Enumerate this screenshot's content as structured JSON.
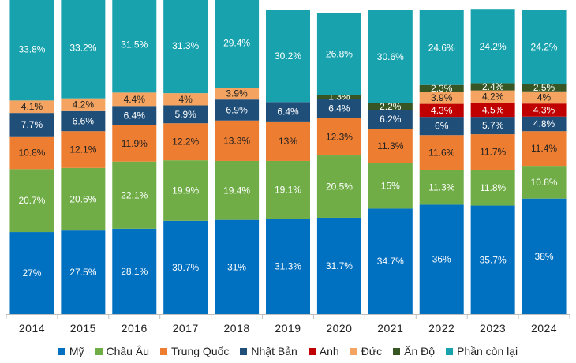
{
  "chart_data": {
    "type": "bar",
    "stacked": true,
    "title": "",
    "xlabel": "",
    "ylabel": "",
    "ylim": [
      0,
      100
    ],
    "grid": false,
    "legend_position": "bottom",
    "categories": [
      "2014",
      "2015",
      "2016",
      "2017",
      "2018",
      "2019",
      "2020",
      "2021",
      "2022",
      "2023",
      "2024"
    ],
    "series": [
      {
        "name": "Mỹ",
        "color": "#0070C0",
        "values": [
          27,
          27.5,
          28.1,
          30.7,
          31,
          31.3,
          31.7,
          34.7,
          36,
          35.7,
          38
        ],
        "labels": [
          "27%",
          "27.5%",
          "28.1%",
          "30.7%",
          "31%",
          "31.3%",
          "31.7%",
          "34.7%",
          "36%",
          "35.7%",
          "38%"
        ]
      },
      {
        "name": "Châu Âu",
        "color": "#70AD47",
        "values": [
          20.7,
          20.6,
          22.1,
          19.9,
          19.4,
          19.1,
          20.5,
          15,
          11.3,
          11.8,
          10.8
        ],
        "labels": [
          "20.7%",
          "20.6%",
          "22.1%",
          "19.9%",
          "19.4%",
          "19.1%",
          "20.5%",
          "15%",
          "11.3%",
          "11.8%",
          "10.8%"
        ]
      },
      {
        "name": "Trung Quốc",
        "color": "#ED7D31",
        "values": [
          10.8,
          12.1,
          11.9,
          12.2,
          13.3,
          13,
          12.3,
          11.3,
          11.6,
          11.7,
          11.4
        ],
        "labels": [
          "10.8%",
          "12.1%",
          "11.9%",
          "12.2%",
          "13.3%",
          "13%",
          "12.3%",
          "11.3%",
          "11.6%",
          "11.7%",
          "11.4%"
        ]
      },
      {
        "name": "Nhật Bản",
        "color": "#1F4E79",
        "values": [
          7.7,
          6.6,
          6.4,
          5.9,
          6.9,
          6.4,
          6.4,
          6.2,
          6,
          5.7,
          4.8
        ],
        "labels": [
          "7.7%",
          "6.6%",
          "6.4%",
          "5.9%",
          "6.9%",
          "6.4%",
          "6.4%",
          "6.2%",
          "6%",
          "5.7%",
          "4.8%"
        ]
      },
      {
        "name": "Anh",
        "color": "#C00000",
        "values": [
          0,
          0,
          0,
          0,
          0,
          0,
          0,
          0,
          4.3,
          4.5,
          4.3
        ],
        "labels": [
          "",
          "",
          "",
          "",
          "",
          "",
          "",
          "",
          "4.3%",
          "4.5%",
          "4.3%"
        ]
      },
      {
        "name": "Đức",
        "color": "#F4A460",
        "values": [
          4.1,
          4.2,
          4.4,
          4,
          3.9,
          0,
          0,
          0,
          3.9,
          4.2,
          4
        ],
        "labels": [
          "4.1%",
          "4.2%",
          "4.4%",
          "4%",
          "3.9%",
          "",
          "",
          "",
          "3.9%",
          "4.2%",
          "4%"
        ]
      },
      {
        "name": "Ấn Độ",
        "color": "#375623",
        "values": [
          0,
          0,
          0,
          0,
          0,
          0,
          1.3,
          2.2,
          2.3,
          2.4,
          2.5
        ],
        "labels": [
          "",
          "",
          "",
          "",
          "",
          "",
          "1.3%",
          "2.2%",
          "2.3%",
          "2.4%",
          "2.5%"
        ]
      },
      {
        "name": "Phần còn lại",
        "color": "#17A2AE",
        "values": [
          33.8,
          33.2,
          31.5,
          31.3,
          29.4,
          30.2,
          26.8,
          30.6,
          24.6,
          24.2,
          24.2
        ],
        "labels": [
          "33.8%",
          "33.2%",
          "31.5%",
          "31.3%",
          "29.4%",
          "30.2%",
          "26.8%",
          "30.6%",
          "24.6%",
          "24.2%",
          "24.2%"
        ]
      }
    ]
  }
}
